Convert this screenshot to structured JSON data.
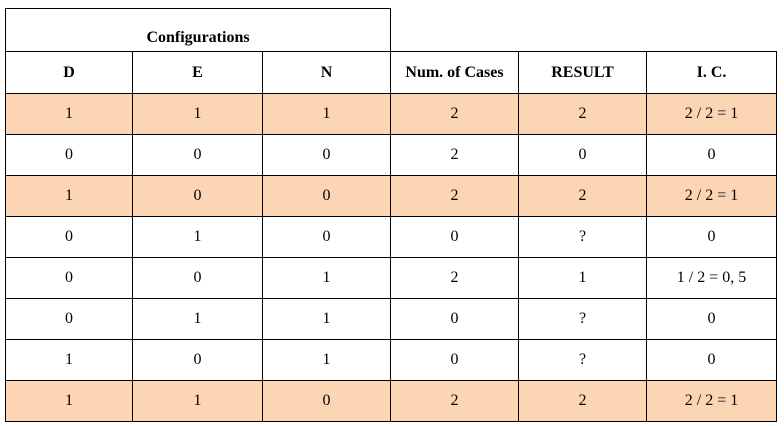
{
  "table": {
    "group_header": "Configurations",
    "columns": [
      "D",
      "E",
      "N",
      "Num. of Cases",
      "RESULT",
      "I. C."
    ],
    "highlight_color": "#fcd5b4",
    "rows": [
      {
        "cells": [
          "1",
          "1",
          "1",
          "2",
          "2",
          "2 / 2 = 1"
        ],
        "highlight": true
      },
      {
        "cells": [
          "0",
          "0",
          "0",
          "2",
          "0",
          "0"
        ],
        "highlight": false
      },
      {
        "cells": [
          "1",
          "0",
          "0",
          "2",
          "2",
          "2 / 2 = 1"
        ],
        "highlight": true
      },
      {
        "cells": [
          "0",
          "1",
          "0",
          "0",
          "?",
          "0"
        ],
        "highlight": false
      },
      {
        "cells": [
          "0",
          "0",
          "1",
          "2",
          "1",
          "1 / 2 = 0, 5"
        ],
        "highlight": false
      },
      {
        "cells": [
          "0",
          "1",
          "1",
          "0",
          "?",
          "0"
        ],
        "highlight": false
      },
      {
        "cells": [
          "1",
          "0",
          "1",
          "0",
          "?",
          "0"
        ],
        "highlight": false
      },
      {
        "cells": [
          "1",
          "1",
          "0",
          "2",
          "2",
          "2 / 2 = 1"
        ],
        "highlight": true
      }
    ]
  }
}
